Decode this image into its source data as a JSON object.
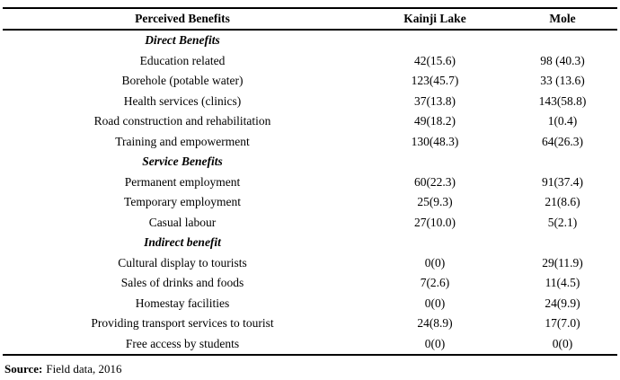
{
  "chart_data": {
    "type": "table",
    "columns": [
      "Perceived Benefits",
      "Kainji Lake",
      "Mole"
    ],
    "rows": [
      {
        "kind": "section",
        "label": "Direct Benefits",
        "kainji": "",
        "mole": ""
      },
      {
        "kind": "data",
        "label": "Education related",
        "kainji": "42(15.6)",
        "mole": "98 (40.3)"
      },
      {
        "kind": "data",
        "label": "Borehole (potable water)",
        "kainji": "123(45.7)",
        "mole": "33 (13.6)"
      },
      {
        "kind": "data",
        "label": "Health services (clinics)",
        "kainji": "37(13.8)",
        "mole": "143(58.8)"
      },
      {
        "kind": "data",
        "label": "Road construction and rehabilitation",
        "kainji": "49(18.2)",
        "mole": "1(0.4)"
      },
      {
        "kind": "data",
        "label": "Training and empowerment",
        "kainji": "130(48.3)",
        "mole": "64(26.3)"
      },
      {
        "kind": "section",
        "label": "Service Benefits",
        "kainji": "",
        "mole": ""
      },
      {
        "kind": "data",
        "label": "Permanent employment",
        "kainji": "60(22.3)",
        "mole": "91(37.4)"
      },
      {
        "kind": "data",
        "label": "Temporary employment",
        "kainji": "25(9.3)",
        "mole": "21(8.6)"
      },
      {
        "kind": "data",
        "label": "Casual labour",
        "kainji": "27(10.0)",
        "mole": "5(2.1)"
      },
      {
        "kind": "section",
        "label": "Indirect benefit",
        "kainji": "",
        "mole": ""
      },
      {
        "kind": "data",
        "label": "Cultural display to tourists",
        "kainji": "0(0)",
        "mole": "29(11.9)"
      },
      {
        "kind": "data",
        "label": "Sales of drinks and foods",
        "kainji": "7(2.6)",
        "mole": "11(4.5)"
      },
      {
        "kind": "data",
        "label": "Homestay facilities",
        "kainji": "0(0)",
        "mole": "24(9.9)"
      },
      {
        "kind": "data",
        "label": "Providing transport services to tourist",
        "kainji": "24(8.9)",
        "mole": "17(7.0)"
      },
      {
        "kind": "data",
        "label": "Free access by students",
        "kainji": "0(0)",
        "mole": "0(0)"
      }
    ]
  },
  "source": {
    "label": "Source:",
    "text": "Field data, 2016"
  }
}
